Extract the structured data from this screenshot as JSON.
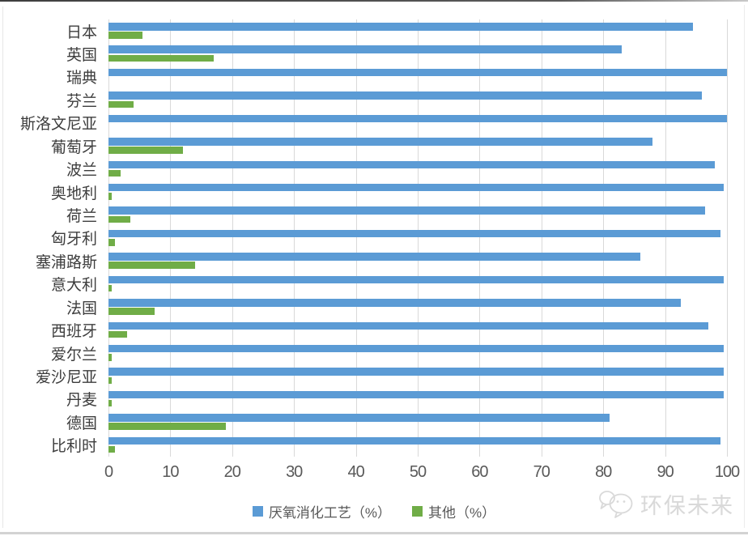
{
  "chart_data": {
    "type": "bar",
    "orientation": "horizontal",
    "title": "",
    "xlabel": "",
    "ylabel": "",
    "categories": [
      "日本",
      "英国",
      "瑞典",
      "芬兰",
      "斯洛文尼亚",
      "葡萄牙",
      "波兰",
      "奥地利",
      "荷兰",
      "匈牙利",
      "塞浦路斯",
      "意大利",
      "法国",
      "西班牙",
      "爱尔兰",
      "爱沙尼亚",
      "丹麦",
      "德国",
      "比利时"
    ],
    "series": [
      {
        "name": "厌氧消化工艺（%）",
        "color": "#5B9BD5",
        "values": [
          94.5,
          83,
          100,
          96,
          100,
          88,
          98,
          99.5,
          96.5,
          99,
          86,
          99.5,
          92.5,
          97,
          99.5,
          99.5,
          99.5,
          81,
          99
        ]
      },
      {
        "name": "其他（%）",
        "color": "#70AD47",
        "values": [
          5.5,
          17,
          0,
          4,
          0,
          12,
          2,
          0.5,
          3.5,
          1,
          14,
          0.5,
          7.5,
          3,
          0.5,
          0.5,
          0.5,
          19,
          1
        ]
      }
    ],
    "x_axis": {
      "min": 0,
      "max": 100,
      "tick_step": 10,
      "ticks": [
        0,
        10,
        20,
        30,
        40,
        50,
        60,
        70,
        80,
        90,
        100
      ]
    },
    "grid": "vertical-on",
    "legend_position": "bottom-center",
    "grid_color": "#D9D9D9",
    "tick_label_color": "#595959",
    "category_label_color": "#3D3D3D"
  },
  "watermark": {
    "text": "环保未来"
  }
}
